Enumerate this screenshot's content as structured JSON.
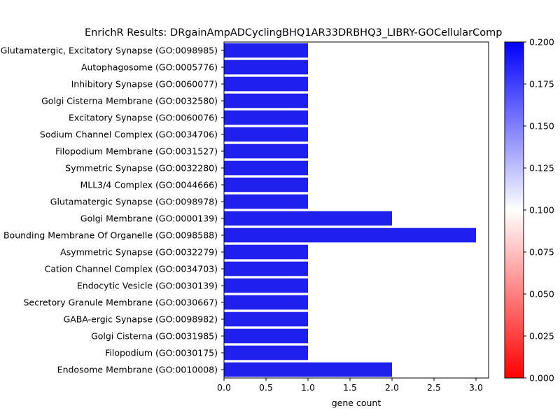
{
  "chart_data": {
    "type": "bar",
    "orientation": "horizontal",
    "title": "EnrichR Results: DRgainAmpADCyclingBHQ1AR33DRBHQ3_LIBRY-GOCellularComp",
    "xlabel": "gene count",
    "ylabel": "",
    "xlim": [
      0,
      3.15
    ],
    "x_ticks": [
      "0.0",
      "0.5",
      "1.0",
      "1.5",
      "2.0",
      "2.5",
      "3.0"
    ],
    "x_tick_values": [
      0,
      0.5,
      1,
      1.5,
      2,
      2.5,
      3
    ],
    "categories": [
      "Glutamatergic, Excitatory Synapse (GO:0098985)",
      "Autophagosome (GO:0005776)",
      "Inhibitory Synapse (GO:0060077)",
      "Golgi Cisterna Membrane (GO:0032580)",
      "Excitatory Synapse (GO:0060076)",
      "Sodium Channel Complex (GO:0034706)",
      "Filopodium Membrane (GO:0031527)",
      "Symmetric Synapse (GO:0032280)",
      "MLL3/4 Complex (GO:0044666)",
      "Glutamatergic Synapse (GO:0098978)",
      "Golgi Membrane (GO:0000139)",
      "Bounding Membrane Of Organelle (GO:0098588)",
      "Asymmetric Synapse (GO:0032279)",
      "Cation Channel Complex (GO:0034703)",
      "Endocytic Vesicle (GO:0030139)",
      "Secretory Granule Membrane (GO:0030667)",
      "GABA-ergic Synapse (GO:0098982)",
      "Golgi Cisterna (GO:0031985)",
      "Filopodium (GO:0030175)",
      "Endosome Membrane (GO:0010008)"
    ],
    "values": [
      1,
      1,
      1,
      1,
      1,
      1,
      1,
      1,
      1,
      1,
      2,
      3,
      1,
      1,
      1,
      1,
      1,
      1,
      1,
      2
    ],
    "bar_color": "#2020ee",
    "colorbar": {
      "range": [
        0,
        0.2
      ],
      "ticks": [
        "0.000",
        "0.025",
        "0.050",
        "0.075",
        "0.100",
        "0.125",
        "0.150",
        "0.175",
        "0.200"
      ],
      "tick_values": [
        0,
        0.025,
        0.05,
        0.075,
        0.1,
        0.125,
        0.15,
        0.175,
        0.2
      ],
      "colors": [
        "#ff0000",
        "#ffffff",
        "#0000ff"
      ]
    },
    "grid": false,
    "legend": "none"
  }
}
